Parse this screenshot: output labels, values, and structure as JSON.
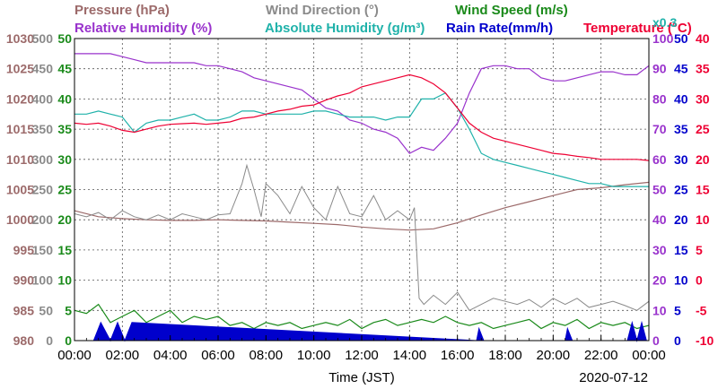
{
  "chart_data": {
    "type": "line",
    "date": "2020-07-12",
    "xlabel": "Time (JST)",
    "x_ticks": [
      "00:00",
      "02:00",
      "04:00",
      "06:00",
      "08:00",
      "10:00",
      "12:00",
      "14:00",
      "16:00",
      "18:00",
      "20:00",
      "22:00",
      "00:00"
    ],
    "x_unit": "hour",
    "xlim": [
      0,
      24
    ],
    "scale_note": "x0.3",
    "legend_row1": [
      {
        "name": "Pressure (hPa)",
        "color": "#9c6a6a"
      },
      {
        "name": "Wind Direction (°)",
        "color": "#8a8a8a"
      },
      {
        "name": "Wind Speed (m/s)",
        "color": "#1a8a1a"
      }
    ],
    "legend_row2": [
      {
        "name": "Relative Humidity (%)",
        "color": "#9932cc"
      },
      {
        "name": "Absolute Humidity (g/m³)",
        "color": "#20b2aa"
      },
      {
        "name": "Rain Rate(mm/h)",
        "color": "#0000cc"
      },
      {
        "name": "Temperature (°C)",
        "color": "#ee0033"
      }
    ],
    "axes": {
      "pressure": {
        "ticks": [
          "980",
          "985",
          "990",
          "995",
          "1000",
          "1005",
          "1010",
          "1015",
          "1020",
          "1025",
          "1030"
        ],
        "ylim": [
          980,
          1030
        ],
        "color": "#9c6a6a"
      },
      "wind_direction": {
        "ticks": [
          "0",
          "50",
          "100",
          "150",
          "200",
          "250",
          "300",
          "350",
          "400",
          "450",
          "500"
        ],
        "ylim": [
          0,
          500
        ],
        "color": "#8a8a8a"
      },
      "wind_speed": {
        "ticks": [
          "0",
          "5",
          "10",
          "15",
          "20",
          "25",
          "30",
          "35",
          "40",
          "45",
          "50"
        ],
        "ylim": [
          0,
          50
        ],
        "color": "#1a8a1a"
      },
      "humidity": {
        "ticks": [
          "0",
          "10",
          "20",
          "30",
          "40",
          "50",
          "60",
          "70",
          "80",
          "90",
          "100"
        ],
        "ylim": [
          0,
          100
        ],
        "color": "#9932cc"
      },
      "rain": {
        "ticks": [
          "0",
          "5",
          "10",
          "15",
          "20",
          "25",
          "30",
          "35",
          "40",
          "45",
          "50"
        ],
        "ylim": [
          0,
          50
        ],
        "color": "#0000cc"
      },
      "temperature": {
        "ticks": [
          "-10",
          "-5",
          "0",
          "5",
          "10",
          "15",
          "20",
          "25",
          "30",
          "35",
          "40"
        ],
        "ylim": [
          -10,
          40
        ],
        "color": "#ee0033"
      }
    },
    "series": [
      {
        "name": "Pressure (hPa)",
        "axis": "pressure",
        "color": "#9c6a6a",
        "x": [
          0,
          1,
          2,
          3,
          4,
          5,
          6,
          7,
          8,
          9,
          10,
          11,
          12,
          13,
          14,
          15,
          16,
          17,
          18,
          19,
          20,
          21,
          22,
          23,
          24
        ],
        "y": [
          1001.5,
          1000.5,
          1000.2,
          1000,
          999.9,
          999.9,
          1000,
          999.9,
          999.8,
          999.6,
          999.4,
          999.2,
          998.8,
          998.5,
          998.3,
          998.5,
          999.5,
          1000.8,
          1002,
          1003,
          1004,
          1005,
          1005.3,
          1005.8,
          1006.2
        ]
      },
      {
        "name": "Wind Direction (°)",
        "axis": "wind_direction",
        "color": "#8a8a8a",
        "x": [
          0,
          0.5,
          1,
          1.5,
          2,
          2.5,
          3,
          3.5,
          4,
          4.5,
          5,
          5.5,
          6,
          6.5,
          7,
          7.2,
          7.5,
          7.8,
          8,
          8.5,
          9,
          9.5,
          10,
          10.5,
          11,
          11.5,
          12,
          12.5,
          13,
          13.5,
          14,
          14.2,
          14.4,
          14.6,
          15,
          15.5,
          16,
          16.5,
          17,
          17.5,
          18,
          18.5,
          19,
          19.5,
          20,
          20.5,
          21,
          21.5,
          22,
          22.5,
          23,
          23.5,
          24
        ],
        "y": [
          210,
          205,
          212,
          200,
          215,
          205,
          200,
          208,
          200,
          210,
          205,
          200,
          208,
          210,
          260,
          290,
          250,
          205,
          260,
          240,
          210,
          255,
          220,
          200,
          255,
          210,
          205,
          240,
          200,
          215,
          200,
          220,
          70,
          60,
          75,
          60,
          80,
          50,
          60,
          70,
          65,
          60,
          68,
          55,
          70,
          60,
          70,
          55,
          60,
          65,
          58,
          50,
          65
        ]
      },
      {
        "name": "Wind Speed (m/s)",
        "axis": "wind_speed",
        "color": "#1a8a1a",
        "x": [
          0,
          0.5,
          1,
          1.5,
          2,
          2.5,
          3,
          3.5,
          4,
          4.5,
          5,
          5.5,
          6,
          6.5,
          7,
          7.5,
          8,
          8.5,
          9,
          9.5,
          10,
          10.5,
          11,
          11.5,
          12,
          12.5,
          13,
          13.5,
          14,
          14.5,
          15,
          15.5,
          16,
          16.5,
          17,
          17.5,
          18,
          18.5,
          19,
          19.5,
          20,
          20.5,
          21,
          21.5,
          22,
          22.5,
          23,
          23.5,
          24
        ],
        "y": [
          5,
          4.5,
          6,
          3,
          4,
          5,
          3,
          4,
          5,
          3,
          4,
          3.5,
          4,
          2.5,
          3,
          2,
          3,
          2.5,
          3,
          2,
          2.5,
          3,
          2.5,
          3.5,
          2,
          3,
          3.5,
          2.5,
          3,
          3.5,
          3,
          4,
          3,
          2.5,
          3,
          2,
          2.5,
          3,
          3.5,
          2,
          3,
          2.5,
          3.5,
          2,
          3,
          2.5,
          3,
          2,
          2.5
        ]
      },
      {
        "name": "Relative Humidity (%)",
        "axis": "humidity",
        "color": "#9932cc",
        "x": [
          0,
          0.5,
          1,
          1.5,
          2,
          2.5,
          3,
          3.5,
          4,
          4.5,
          5,
          5.5,
          6,
          6.5,
          7,
          7.5,
          8,
          8.5,
          9,
          9.5,
          10,
          10.5,
          11,
          11.5,
          12,
          12.5,
          13,
          13.5,
          14,
          14.5,
          15,
          15.5,
          16,
          16.5,
          17,
          17.5,
          18,
          18.5,
          19,
          19.5,
          20,
          20.5,
          21,
          21.5,
          22,
          22.5,
          23,
          23.5,
          24
        ],
        "y": [
          95,
          95,
          95,
          95,
          94,
          93,
          92,
          92,
          92,
          92,
          92,
          91,
          91,
          90,
          89,
          87,
          86,
          85,
          84,
          83,
          80,
          77,
          76,
          73,
          72,
          70,
          69,
          67,
          62,
          64,
          63,
          67,
          72,
          82,
          90,
          91,
          91,
          90,
          90,
          87,
          86,
          86,
          87,
          88,
          89,
          89,
          88,
          88,
          91
        ]
      },
      {
        "name": "Absolute Humidity (g/m³)",
        "axis": "humidity",
        "color": "#20b2aa",
        "x": [
          0,
          0.5,
          1,
          1.5,
          2,
          2.5,
          3,
          3.5,
          4,
          4.5,
          5,
          5.5,
          6,
          6.5,
          7,
          7.5,
          8,
          8.5,
          9,
          9.5,
          10,
          10.5,
          11,
          11.5,
          12,
          12.5,
          13,
          13.5,
          14,
          14.5,
          15,
          15.5,
          16,
          16.5,
          17,
          17.5,
          18,
          18.5,
          19,
          19.5,
          20,
          20.5,
          21,
          21.5,
          22,
          22.5,
          23,
          23.5,
          24
        ],
        "y": [
          75,
          75,
          76,
          75,
          74,
          69,
          72,
          73,
          73,
          74,
          75,
          73,
          73,
          74,
          76,
          76,
          75,
          75,
          75,
          75,
          76,
          76,
          75,
          74,
          74,
          74,
          73,
          74,
          74,
          80,
          80,
          82,
          77,
          70,
          62,
          60,
          59,
          58,
          57,
          56,
          55,
          54,
          53,
          52,
          52,
          51,
          51,
          51,
          51
        ]
      },
      {
        "name": "Rain Rate(mm/h)",
        "axis": "rain",
        "color": "#0000cc",
        "x": [
          0.8,
          1.1,
          1.5,
          1.8,
          2.1,
          2.4,
          16.8,
          16.9,
          17.1,
          20.5,
          20.6,
          20.8,
          23.1,
          23.3,
          23.5,
          23.7,
          23.9
        ],
        "y": [
          0,
          3,
          0,
          3,
          0,
          3,
          0,
          2,
          0,
          0,
          2,
          0,
          0,
          3,
          0,
          3,
          0
        ]
      },
      {
        "name": "Temperature (°C)",
        "axis": "temperature",
        "color": "#ee0033",
        "x": [
          0,
          0.5,
          1,
          1.5,
          2,
          2.5,
          3,
          3.5,
          4,
          4.5,
          5,
          5.5,
          6,
          6.5,
          7,
          7.5,
          8,
          8.5,
          9,
          9.5,
          10,
          10.5,
          11,
          11.5,
          12,
          12.5,
          13,
          13.5,
          14,
          14.5,
          15,
          15.5,
          16,
          16.5,
          17,
          17.5,
          18,
          18.5,
          19,
          19.5,
          20,
          20.5,
          21,
          21.5,
          22,
          22.5,
          23,
          23.5,
          24
        ],
        "y": [
          26,
          25.8,
          26,
          25.5,
          24.8,
          24.5,
          25,
          25.5,
          25.8,
          25.9,
          26,
          25.8,
          26,
          26.2,
          26.8,
          27,
          27.5,
          28,
          28.3,
          28.8,
          29,
          29.8,
          30.5,
          31,
          32,
          32.5,
          33,
          33.5,
          34,
          33.5,
          32.5,
          31,
          28.5,
          26,
          24.5,
          23.5,
          23,
          22.5,
          22,
          21.5,
          21,
          20.8,
          20.5,
          20.3,
          20,
          20,
          20,
          20,
          19.8
        ]
      }
    ]
  }
}
